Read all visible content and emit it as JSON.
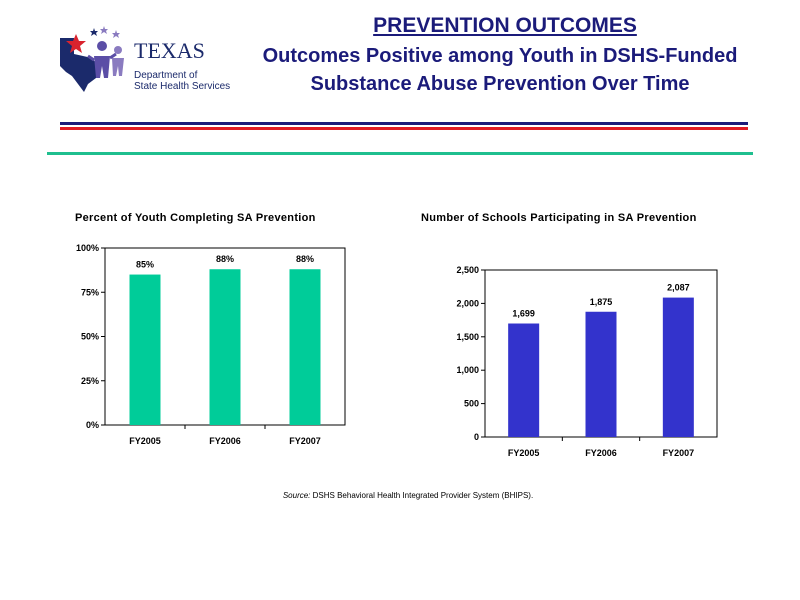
{
  "logo": {
    "word": "TEXAS",
    "line1": "Department of",
    "line2": "State Health Services"
  },
  "header": {
    "title": "PREVENTION OUTCOMES",
    "subtitle_line1": "Outcomes Positive among Youth in DSHS-Funded",
    "subtitle_line2": "Substance Abuse Prevention Over Time"
  },
  "colors": {
    "title": "#1b1b7a",
    "rule_navy": "#1b1b7a",
    "rule_red": "#e01b24",
    "rule_teal": "#1fbf8f",
    "bar_green": "#00cc99",
    "bar_blue": "#3333cc"
  },
  "chart_data": [
    {
      "type": "bar",
      "title": "Percent of Youth Completing SA Prevention",
      "categories": [
        "FY2005",
        "FY2006",
        "FY2007"
      ],
      "values": [
        85,
        88,
        88
      ],
      "data_labels": [
        "85%",
        "88%",
        "88%"
      ],
      "ylim": [
        0,
        100
      ],
      "yticks": [
        0,
        25,
        50,
        75,
        100
      ],
      "ytick_labels": [
        "0%",
        "25%",
        "50%",
        "75%",
        "100%"
      ],
      "color": "#00cc99",
      "grid": false
    },
    {
      "type": "bar",
      "title": "Number of Schools Participating in SA Prevention",
      "categories": [
        "FY2005",
        "FY2006",
        "FY2007"
      ],
      "values": [
        1699,
        1875,
        2087
      ],
      "data_labels": [
        "1,699",
        "1,875",
        "2,087"
      ],
      "ylim": [
        0,
        2500
      ],
      "yticks": [
        0,
        500,
        1000,
        1500,
        2000,
        2500
      ],
      "ytick_labels": [
        "0",
        "500",
        "1,000",
        "1,500",
        "2,000",
        "2,500"
      ],
      "color": "#3333cc",
      "grid": false
    }
  ],
  "source": {
    "label": "Source:",
    "text": " DSHS Behavioral Health Integrated Provider System (BHIPS)."
  }
}
